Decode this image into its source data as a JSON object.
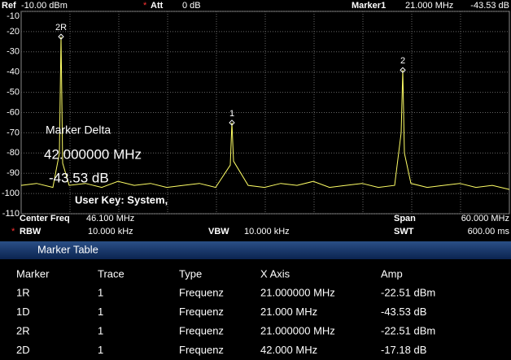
{
  "header": {
    "ref_label": "Ref",
    "ref_value": "-10.00 dBm",
    "att_label": "Att",
    "att_value": "0 dB",
    "marker_label": "Marker1",
    "marker_value": "21.000 MHz",
    "marker_amp": "-43.53 dB"
  },
  "plot": {
    "ylim": [
      -110,
      -10
    ],
    "yticks": [
      -10,
      -20,
      -30,
      -40,
      -50,
      -60,
      -70,
      -80,
      -90,
      -100,
      -110
    ],
    "xlim": [
      16.1,
      76.1
    ],
    "grid": true,
    "trace": {
      "color": "#ffff66",
      "x": [
        16.1,
        18,
        20,
        20.8,
        21,
        21.2,
        22,
        24,
        26,
        28,
        30,
        32,
        34,
        36,
        38,
        40,
        41.8,
        42,
        42.2,
        44,
        46,
        48,
        50,
        52,
        54,
        56,
        58,
        60,
        62,
        62.8,
        63,
        63.2,
        64,
        66,
        68,
        70,
        72,
        74,
        76.1
      ],
      "y": [
        -96,
        -95,
        -97,
        -80,
        -22.5,
        -85,
        -96,
        -95,
        -97,
        -94,
        -96,
        -95,
        -97,
        -96,
        -95,
        -97,
        -86,
        -65,
        -84,
        -96,
        -97,
        -95,
        -96,
        -94,
        -97,
        -96,
        -95,
        -97,
        -96,
        -70,
        -39,
        -80,
        -95,
        -97,
        -96,
        -95,
        -97,
        -96,
        -98
      ]
    },
    "markers": [
      {
        "label": "2R",
        "x": 21,
        "y": -22.5
      },
      {
        "label": "1",
        "x": 42,
        "y": -65
      },
      {
        "label": "2",
        "x": 63,
        "y": -39
      }
    ],
    "overlay": {
      "title": "Marker Delta",
      "freq": "42.000000 MHz",
      "amp": "-43.53 dB",
      "user_key": "User Key:  System,"
    }
  },
  "footer": {
    "center_label": "Center Freq",
    "center_value": "46.100 MHz",
    "span_label": "Span",
    "span_value": "60.000 MHz",
    "rbw_label": "RBW",
    "rbw_value": "10.000 kHz",
    "vbw_label": "VBW",
    "vbw_value": "10.000 kHz",
    "swt_label": "SWT",
    "swt_value": "600.00 ms"
  },
  "marker_table": {
    "title": "Marker Table",
    "headers": [
      "Marker",
      "Trace",
      "Type",
      "X Axis",
      "Amp"
    ],
    "rows": [
      [
        "1R",
        "1",
        "Frequenz",
        "21.000000 MHz",
        "-22.51 dBm"
      ],
      [
        "1D",
        "1",
        "Frequenz",
        "21.000 MHz",
        "-43.53 dB"
      ],
      [
        "2R",
        "1",
        "Frequenz",
        "21.000000 MHz",
        "-22.51 dBm"
      ],
      [
        "2D",
        "1",
        "Frequenz",
        "42.000 MHz",
        "-17.18 dB"
      ]
    ]
  }
}
